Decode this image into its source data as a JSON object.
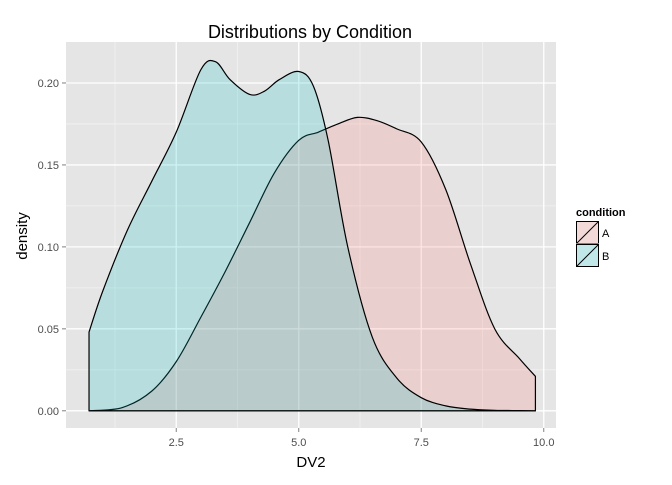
{
  "chart_data": {
    "type": "area",
    "title": "Distributions by Condition",
    "xlabel": "DV2",
    "ylabel": "density",
    "xlim": [
      0.25,
      10.25
    ],
    "ylim": [
      -0.0105,
      0.225
    ],
    "x_ticks": [
      2.5,
      5.0,
      7.5,
      10.0
    ],
    "x_tick_labels": [
      "2.5",
      "5.0",
      "7.5",
      "10.0"
    ],
    "y_ticks": [
      0.0,
      0.05,
      0.1,
      0.15,
      0.2
    ],
    "y_tick_labels": [
      "0.00",
      "0.05",
      "0.10",
      "0.15",
      "0.20"
    ],
    "grid": true,
    "legend": {
      "title": "condition",
      "position": "right",
      "entries": [
        "A",
        "B"
      ]
    },
    "series": [
      {
        "name": "A",
        "fill": "#F8766D",
        "x": [
          0.72,
          1.4,
          2.0,
          2.5,
          3.0,
          3.5,
          4.0,
          4.5,
          5.0,
          5.4,
          5.8,
          6.2,
          6.6,
          7.0,
          7.5,
          8.0,
          8.5,
          9.0,
          9.5,
          9.83
        ],
        "y": [
          0.0,
          0.002,
          0.012,
          0.03,
          0.057,
          0.085,
          0.115,
          0.145,
          0.165,
          0.17,
          0.175,
          0.179,
          0.177,
          0.172,
          0.164,
          0.135,
          0.09,
          0.05,
          0.032,
          0.021
        ]
      },
      {
        "name": "B",
        "fill": "#00BFC4",
        "x": [
          0.72,
          1.0,
          1.5,
          2.0,
          2.5,
          3.0,
          3.3,
          3.6,
          4.0,
          4.3,
          4.6,
          5.0,
          5.3,
          5.6,
          6.0,
          6.5,
          7.0,
          7.5,
          8.0,
          8.5,
          9.0,
          9.5,
          9.83
        ],
        "y": [
          0.048,
          0.073,
          0.11,
          0.14,
          0.17,
          0.208,
          0.213,
          0.202,
          0.193,
          0.195,
          0.202,
          0.207,
          0.198,
          0.165,
          0.1,
          0.045,
          0.02,
          0.008,
          0.003,
          0.001,
          0.0003,
          0.0001,
          0.0
        ]
      }
    ]
  }
}
